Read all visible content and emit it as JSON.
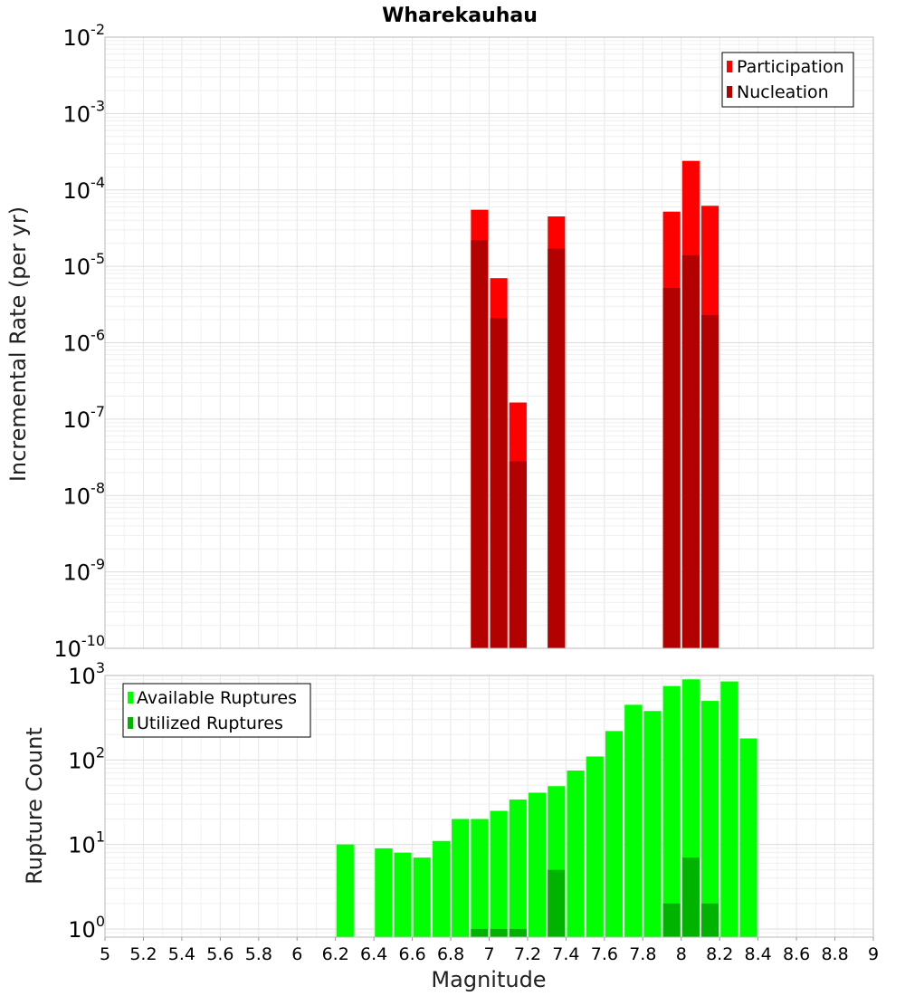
{
  "chart_data": [
    {
      "type": "bar",
      "title": "Wharekauhau",
      "ylabel": "Incremental Rate (per yr)",
      "xlabel": "",
      "scale_y": "log",
      "ylim": [
        1e-10,
        0.01
      ],
      "xlim": [
        5,
        9
      ],
      "yticks": [
        {
          "base": "10",
          "exp": "-10"
        },
        {
          "base": "10",
          "exp": "-9"
        },
        {
          "base": "10",
          "exp": "-8"
        },
        {
          "base": "10",
          "exp": "-7"
        },
        {
          "base": "10",
          "exp": "-6"
        },
        {
          "base": "10",
          "exp": "-5"
        },
        {
          "base": "10",
          "exp": "-4"
        },
        {
          "base": "10",
          "exp": "-3"
        },
        {
          "base": "10",
          "exp": "-2"
        }
      ],
      "grid": true,
      "legend_position": "top-right",
      "series": [
        {
          "name": "Participation",
          "color": "#ff0000",
          "x": [
            6.95,
            7.05,
            7.15,
            7.35,
            7.95,
            8.05,
            8.15
          ],
          "values": [
            5.5e-05,
            7e-06,
            1.65e-07,
            4.5e-05,
            5.2e-05,
            0.00024,
            6.2e-05
          ]
        },
        {
          "name": "Nucleation",
          "color": "#b30000",
          "x": [
            6.95,
            7.05,
            7.15,
            7.35,
            7.95,
            8.05,
            8.15
          ],
          "values": [
            2.2e-05,
            2.1e-06,
            2.8e-08,
            1.7e-05,
            5.2e-06,
            1.4e-05,
            2.3e-06
          ]
        }
      ]
    },
    {
      "type": "bar",
      "ylabel": "Rupture Count",
      "xlabel": "Magnitude",
      "scale_y": "log",
      "ylim": [
        0.8,
        1000
      ],
      "xlim": [
        5,
        9
      ],
      "xticks": [
        "5",
        "5.2",
        "5.4",
        "5.6",
        "5.8",
        "6",
        "6.2",
        "6.4",
        "6.6",
        "6.8",
        "7",
        "7.2",
        "7.4",
        "7.6",
        "7.8",
        "8",
        "8.2",
        "8.4",
        "8.6",
        "8.8",
        "9"
      ],
      "yticks": [
        {
          "base": "10",
          "exp": "0"
        },
        {
          "base": "10",
          "exp": "1"
        },
        {
          "base": "10",
          "exp": "2"
        },
        {
          "base": "10",
          "exp": "3"
        }
      ],
      "grid": true,
      "legend_position": "top-left",
      "series": [
        {
          "name": "Available Ruptures",
          "color": "#00ff00",
          "x": [
            6.25,
            6.45,
            6.55,
            6.65,
            6.75,
            6.85,
            6.95,
            7.05,
            7.15,
            7.25,
            7.35,
            7.45,
            7.55,
            7.65,
            7.75,
            7.85,
            7.95,
            8.05,
            8.15,
            8.25,
            8.35
          ],
          "values": [
            10,
            9,
            8,
            7,
            11,
            20,
            20,
            25,
            34,
            41,
            49,
            75,
            110,
            220,
            450,
            380,
            750,
            900,
            500,
            850,
            180
          ]
        },
        {
          "name": "Utilized Ruptures",
          "color": "#00b300",
          "x": [
            6.95,
            7.05,
            7.15,
            7.35,
            7.95,
            8.05,
            8.15
          ],
          "values": [
            1,
            1,
            1,
            5,
            2,
            7,
            2
          ]
        }
      ]
    }
  ]
}
